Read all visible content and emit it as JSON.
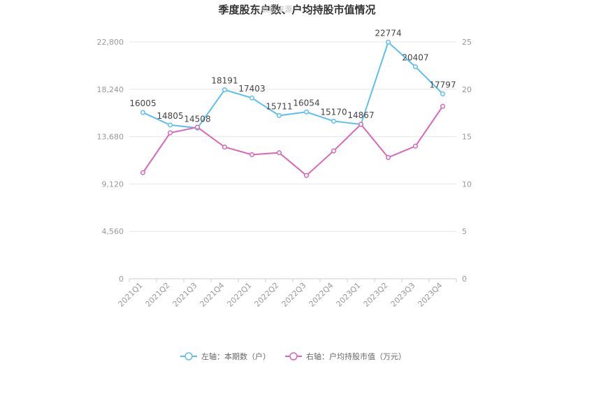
{
  "chart_data": {
    "type": "line",
    "title": "季度股东户数、户均持股市值情况",
    "watermark": "数据来源",
    "categories": [
      "2021Q1",
      "2021Q2",
      "2021Q3",
      "2021Q4",
      "2022Q1",
      "2022Q2",
      "2022Q3",
      "2022Q4",
      "2023Q1",
      "2023Q2",
      "2023Q3",
      "2023Q4"
    ],
    "series": [
      {
        "name": "左轴：本期数（户）",
        "axis": "left",
        "color": "#5bc0f0",
        "values": [
          16005,
          14805,
          14508,
          18191,
          17403,
          15711,
          16054,
          15170,
          14867,
          22774,
          20407,
          17797
        ],
        "labels": [
          "16005",
          "14805",
          "14508",
          "18191",
          "17403",
          "15711",
          "16054",
          "15170",
          "14867",
          "22774",
          "20407",
          "17797"
        ]
      },
      {
        "name": "右轴：户均持股市值（万元）",
        "axis": "right",
        "color": "#d966b8",
        "values": [
          11.2,
          15.4,
          16.0,
          13.9,
          13.1,
          13.3,
          10.9,
          13.5,
          16.3,
          12.8,
          14.0,
          18.2
        ]
      }
    ],
    "y_left": {
      "min": 0,
      "max": 22800,
      "ticks": [
        "0",
        "4,560",
        "9,120",
        "13,680",
        "18,240",
        "22,800"
      ]
    },
    "y_right": {
      "min": 0,
      "max": 25,
      "ticks": [
        "0",
        "5",
        "10",
        "15",
        "20",
        "25"
      ]
    },
    "grid": true,
    "legend_position": "bottom"
  }
}
